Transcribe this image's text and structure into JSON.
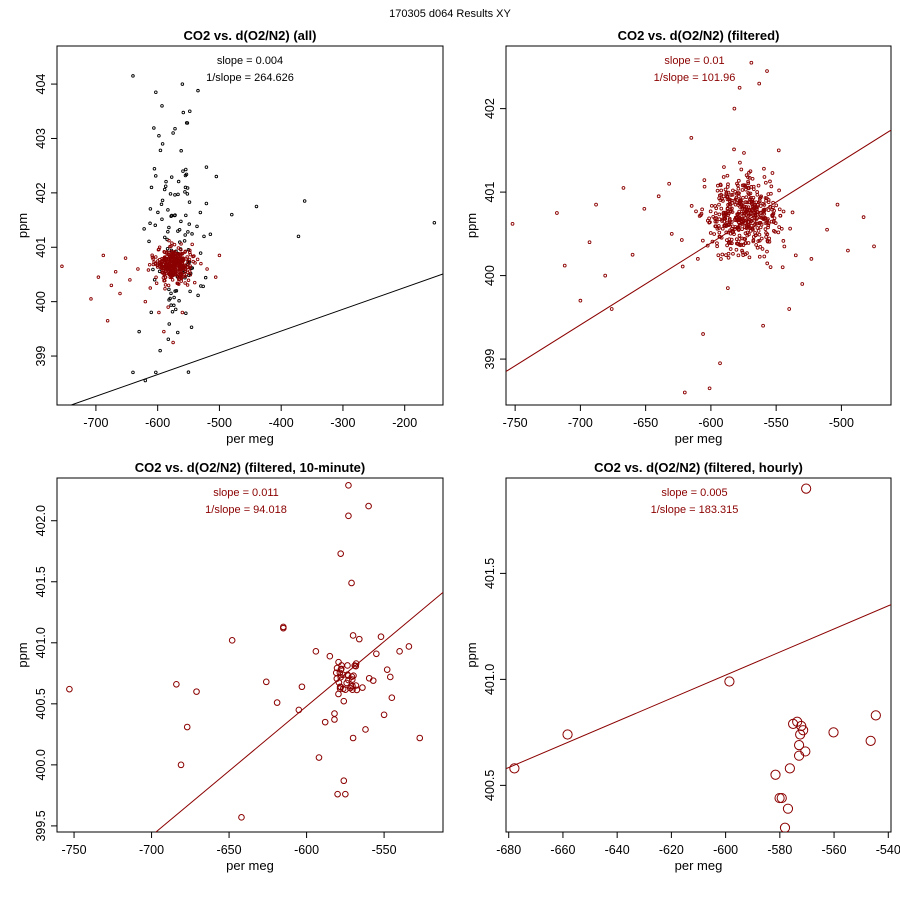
{
  "page": {
    "suptitle": "170305   d064   Results XY"
  },
  "chart_data": [
    {
      "type": "scatter",
      "title": "CO2 vs. d(O2/N2) (all)",
      "xlabel": "per meg",
      "ylabel": "ppm",
      "xlim": [
        -763,
        -138
      ],
      "ylim": [
        398.1,
        404.7
      ],
      "xticks": [
        -700,
        -600,
        -500,
        -400,
        -300,
        -200
      ],
      "yticks": [
        399,
        400,
        401,
        402,
        403,
        404
      ],
      "annotations": [
        "slope = 0.004",
        "1/slope = 264.626"
      ],
      "fit": {
        "slope": 0.004,
        "intercept": 401.06,
        "color": "#000000"
      },
      "point_radius": 1.3,
      "series": [
        {
          "name": "all",
          "color": "#000000",
          "cloud": {
            "cx": -572,
            "cy": 401.2,
            "sx": 22,
            "sy": 1.0,
            "n": 110
          },
          "outliers": [
            [
              -640,
              404.15
            ],
            [
              -603,
              403.85
            ],
            [
              -560,
              404.0
            ],
            [
              -575,
              403.1
            ],
            [
              -548,
              403.5
            ],
            [
              -592,
              402.9
            ],
            [
              -505,
              402.3
            ],
            [
              -480,
              401.6
            ],
            [
              -440,
              401.75
            ],
            [
              -362,
              401.85
            ],
            [
              -372,
              401.2
            ],
            [
              -152,
              401.45
            ],
            [
              -596,
              399.1
            ],
            [
              -603,
              398.7
            ],
            [
              -620,
              398.55
            ],
            [
              -630,
              399.45
            ],
            [
              -640,
              398.7
            ],
            [
              -525,
              401.2
            ],
            [
              -555,
              402.1
            ],
            [
              -610,
              402.1
            ],
            [
              -593,
              403.6
            ]
          ]
        },
        {
          "name": "filtered",
          "color": "#8b0000",
          "cloud": {
            "cx": -575,
            "cy": 400.68,
            "sx": 14,
            "sy": 0.16,
            "n": 320
          },
          "outliers": [
            [
              -755,
              400.65
            ],
            [
              -708,
              400.05
            ],
            [
              -696,
              400.45
            ],
            [
              -688,
              400.85
            ],
            [
              -681,
              399.65
            ],
            [
              -675,
              400.3
            ],
            [
              -668,
              400.55
            ],
            [
              -661,
              400.15
            ],
            [
              -652,
              400.8
            ],
            [
              -645,
              400.4
            ],
            [
              -632,
              400.6
            ],
            [
              -620,
              400.0
            ],
            [
              -612,
              400.25
            ],
            [
              -598,
              399.8
            ],
            [
              -590,
              399.45
            ],
            [
              -575,
              399.25
            ],
            [
              -583,
              399.9
            ],
            [
              -540,
              400.35
            ],
            [
              -530,
              400.7
            ],
            [
              -520,
              400.6
            ],
            [
              -506,
              400.45
            ],
            [
              -500,
              400.85
            ],
            [
              -560,
              399.8
            ]
          ]
        }
      ]
    },
    {
      "type": "scatter",
      "title": "CO2 vs. d(O2/N2) (filtered)",
      "xlabel": "per meg",
      "ylabel": "ppm",
      "xlim": [
        -757,
        -462
      ],
      "ylim": [
        398.45,
        402.75
      ],
      "xticks": [
        -750,
        -700,
        -650,
        -600,
        -550,
        -500
      ],
      "yticks": [
        399,
        400,
        401,
        402
      ],
      "annotations": [
        "slope = 0.01",
        "1/slope = 101.96"
      ],
      "fit": {
        "slope": 0.0098,
        "intercept": 406.27,
        "color": "#8b0000"
      },
      "point_radius": 1.4,
      "series": [
        {
          "name": "filtered",
          "color": "#8b0000",
          "cloud": {
            "cx": -576,
            "cy": 400.7,
            "sx": 14,
            "sy": 0.22,
            "n": 470
          },
          "outliers": [
            [
              -752,
              400.62
            ],
            [
              -718,
              400.75
            ],
            [
              -712,
              400.12
            ],
            [
              -700,
              399.7
            ],
            [
              -693,
              400.4
            ],
            [
              -688,
              400.85
            ],
            [
              -681,
              400.0
            ],
            [
              -676,
              399.6
            ],
            [
              -667,
              401.05
            ],
            [
              -660,
              400.25
            ],
            [
              -651,
              400.8
            ],
            [
              -640,
              400.95
            ],
            [
              -632,
              401.1
            ],
            [
              -620,
              398.6
            ],
            [
              -615,
              401.65
            ],
            [
              -606,
              399.3
            ],
            [
              -601,
              398.65
            ],
            [
              -593,
              398.95
            ],
            [
              -587,
              399.85
            ],
            [
              -582,
              402.0
            ],
            [
              -578,
              402.25
            ],
            [
              -569,
              402.55
            ],
            [
              -563,
              402.3
            ],
            [
              -557,
              402.45
            ],
            [
              -548,
              401.5
            ],
            [
              -540,
              399.6
            ],
            [
              -530,
              399.9
            ],
            [
              -523,
              400.2
            ],
            [
              -511,
              400.55
            ],
            [
              -503,
              400.85
            ],
            [
              -495,
              400.3
            ],
            [
              -483,
              400.7
            ],
            [
              -475,
              400.35
            ],
            [
              -545,
              400.1
            ],
            [
              -590,
              401.3
            ],
            [
              -610,
              400.2
            ],
            [
              -630,
              400.5
            ],
            [
              -560,
              399.4
            ]
          ]
        }
      ]
    },
    {
      "type": "scatter",
      "title": "CO2 vs. d(O2/N2) (filtered, 10-minute)",
      "xlabel": "per meg",
      "ylabel": "ppm",
      "xlim": [
        -761,
        -512
      ],
      "ylim": [
        399.45,
        402.35
      ],
      "xticks": [
        -750,
        -700,
        -650,
        -600,
        -550
      ],
      "yticks": [
        399.5,
        400.0,
        400.5,
        401.0,
        401.5,
        402.0
      ],
      "annotations": [
        "slope = 0.011",
        "1/slope = 94.018"
      ],
      "fit": {
        "slope": 0.0106,
        "intercept": 406.84,
        "color": "#8b0000"
      },
      "point_radius": 2.8,
      "series": [
        {
          "name": "10-minute",
          "color": "#8b0000",
          "cloud": {
            "cx": -573,
            "cy": 400.72,
            "sx": 6,
            "sy": 0.1,
            "n": 38
          },
          "outliers": [
            [
              -753,
              400.62
            ],
            [
              -684,
              400.66
            ],
            [
              -681,
              400.0
            ],
            [
              -677,
              400.31
            ],
            [
              -671,
              400.6
            ],
            [
              -648,
              401.02
            ],
            [
              -642,
              399.57
            ],
            [
              -626,
              400.68
            ],
            [
              -619,
              400.51
            ],
            [
              -615,
              401.13
            ],
            [
              -615,
              401.12
            ],
            [
              -605,
              400.45
            ],
            [
              -603,
              400.64
            ],
            [
              -594,
              400.93
            ],
            [
              -592,
              400.06
            ],
            [
              -588,
              400.35
            ],
            [
              -585,
              400.89
            ],
            [
              -582,
              400.42
            ],
            [
              -578,
              401.73
            ],
            [
              -576,
              399.87
            ],
            [
              -575,
              399.76
            ],
            [
              -573,
              402.29
            ],
            [
              -573,
              402.04
            ],
            [
              -571,
              401.49
            ],
            [
              -570,
              401.06
            ],
            [
              -570,
              400.22
            ],
            [
              -562,
              400.29
            ],
            [
              -560,
              402.12
            ],
            [
              -557,
              400.69
            ],
            [
              -555,
              400.91
            ],
            [
              -552,
              401.05
            ],
            [
              -550,
              400.41
            ],
            [
              -548,
              400.78
            ],
            [
              -546,
              400.72
            ],
            [
              -540,
              400.93
            ],
            [
              -534,
              400.97
            ],
            [
              -527,
              400.22
            ],
            [
              -580,
              399.76
            ],
            [
              -566,
              401.03
            ],
            [
              -545,
              400.55
            ]
          ]
        }
      ]
    },
    {
      "type": "scatter",
      "title": "CO2 vs. d(O2/N2) (filtered, hourly)",
      "xlabel": "per meg",
      "ylabel": "ppm",
      "xlim": [
        -681,
        -539
      ],
      "ylim": [
        400.28,
        401.95
      ],
      "xticks": [
        -680,
        -660,
        -640,
        -620,
        -600,
        -580,
        -560,
        -540
      ],
      "yticks": [
        400.5,
        401.0,
        401.5
      ],
      "annotations": [
        "slope = 0.005",
        "1/slope = 183.315"
      ],
      "fit": {
        "slope": 0.00545,
        "intercept": 404.29,
        "color": "#8b0000"
      },
      "point_radius": 4.6,
      "series": [
        {
          "name": "hourly",
          "color": "#8b0000",
          "points": [
            [
              -677.9,
              400.58
            ],
            [
              -658.3,
              400.74
            ],
            [
              -598.6,
              400.99
            ],
            [
              -581.6,
              400.55
            ],
            [
              -580.1,
              400.44
            ],
            [
              -579.3,
              400.44
            ],
            [
              -578.1,
              400.3
            ],
            [
              -577.0,
              400.39
            ],
            [
              -576.3,
              400.58
            ],
            [
              -575.1,
              400.79
            ],
            [
              -573.6,
              400.8
            ],
            [
              -572.9,
              400.64
            ],
            [
              -572.9,
              400.69
            ],
            [
              -572.5,
              400.74
            ],
            [
              -572.1,
              400.78
            ],
            [
              -571.4,
              400.76
            ],
            [
              -570.6,
              400.66
            ],
            [
              -570.3,
              401.9
            ],
            [
              -560.2,
              400.75
            ],
            [
              -546.5,
              400.71
            ],
            [
              -544.6,
              400.83
            ]
          ]
        }
      ]
    }
  ]
}
